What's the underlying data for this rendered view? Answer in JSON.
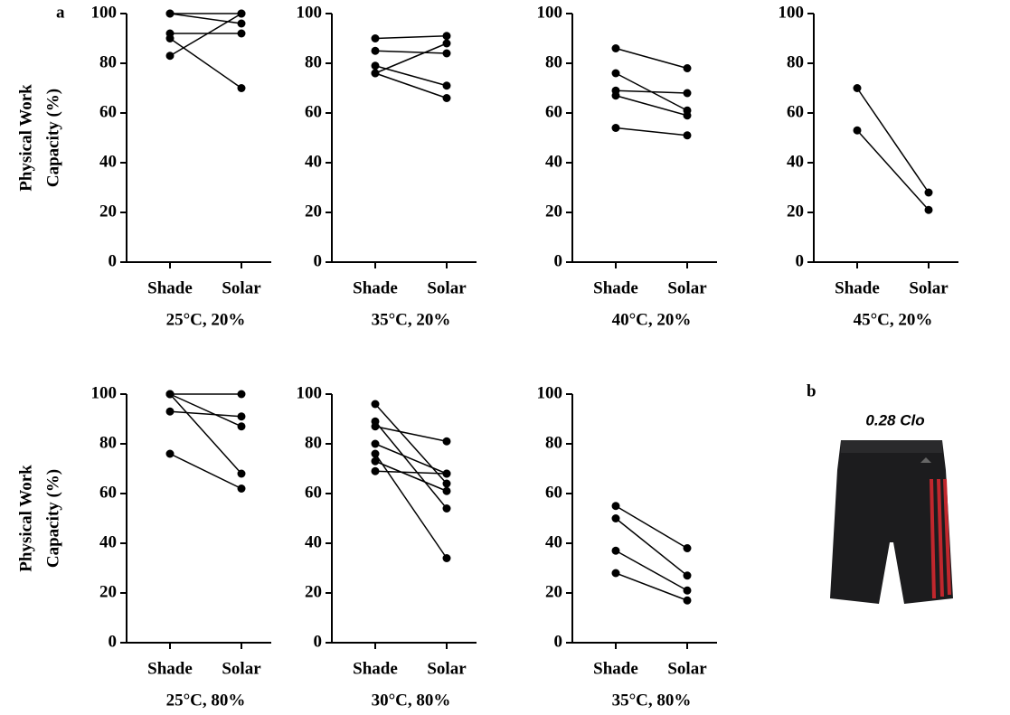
{
  "chart_data": [
    {
      "type": "line",
      "panel_label": "a",
      "ylabel": [
        "Physical Work",
        "Capacity (%)"
      ],
      "xlabel": "25°C, 20%",
      "categories": [
        "Shade",
        "Solar"
      ],
      "color": "#000000",
      "ylim": [
        0,
        100
      ],
      "yticks": [
        0,
        20,
        40,
        60,
        80,
        100
      ],
      "series": [
        {
          "values": [
            100,
            100
          ]
        },
        {
          "values": [
            100,
            96
          ]
        },
        {
          "values": [
            92,
            92
          ]
        },
        {
          "values": [
            90,
            70
          ]
        },
        {
          "values": [
            83,
            100
          ]
        }
      ]
    },
    {
      "type": "line",
      "xlabel": "35°C, 20%",
      "categories": [
        "Shade",
        "Solar"
      ],
      "color": "#000000",
      "ylim": [
        0,
        100
      ],
      "yticks": [
        0,
        20,
        40,
        60,
        80,
        100
      ],
      "series": [
        {
          "values": [
            90,
            91
          ]
        },
        {
          "values": [
            85,
            84
          ]
        },
        {
          "values": [
            79,
            71
          ]
        },
        {
          "values": [
            76,
            88
          ]
        },
        {
          "values": [
            76,
            66
          ]
        }
      ]
    },
    {
      "type": "line",
      "xlabel": "40°C, 20%",
      "categories": [
        "Shade",
        "Solar"
      ],
      "color": "#000000",
      "ylim": [
        0,
        100
      ],
      "yticks": [
        0,
        20,
        40,
        60,
        80,
        100
      ],
      "series": [
        {
          "values": [
            86,
            78
          ]
        },
        {
          "values": [
            76,
            61
          ]
        },
        {
          "values": [
            69,
            68
          ]
        },
        {
          "values": [
            67,
            59
          ]
        },
        {
          "values": [
            54,
            51
          ]
        }
      ]
    },
    {
      "type": "line",
      "xlabel": "45°C, 20%",
      "categories": [
        "Shade",
        "Solar"
      ],
      "color": "#000000",
      "ylim": [
        0,
        100
      ],
      "yticks": [
        0,
        20,
        40,
        60,
        80,
        100
      ],
      "series": [
        {
          "values": [
            70,
            28
          ]
        },
        {
          "values": [
            53,
            21
          ]
        }
      ]
    },
    {
      "type": "line",
      "ylabel": [
        "Physical Work",
        "Capacity (%)"
      ],
      "xlabel": "25°C, 80%",
      "categories": [
        "Shade",
        "Solar"
      ],
      "color": "#000000",
      "ylim": [
        0,
        100
      ],
      "yticks": [
        0,
        20,
        40,
        60,
        80,
        100
      ],
      "series": [
        {
          "values": [
            100,
            100
          ]
        },
        {
          "values": [
            100,
            87
          ]
        },
        {
          "values": [
            100,
            68
          ]
        },
        {
          "values": [
            93,
            91
          ]
        },
        {
          "values": [
            76,
            62
          ]
        }
      ]
    },
    {
      "type": "line",
      "xlabel": "30°C, 80%",
      "categories": [
        "Shade",
        "Solar"
      ],
      "color": "#000000",
      "ylim": [
        0,
        100
      ],
      "yticks": [
        0,
        20,
        40,
        60,
        80,
        100
      ],
      "series": [
        {
          "values": [
            96,
            64
          ]
        },
        {
          "values": [
            89,
            54
          ]
        },
        {
          "values": [
            87,
            81
          ]
        },
        {
          "values": [
            80,
            68
          ]
        },
        {
          "values": [
            76,
            34
          ]
        },
        {
          "values": [
            73,
            61
          ]
        },
        {
          "values": [
            69,
            68
          ]
        }
      ]
    },
    {
      "type": "line",
      "xlabel": "35°C, 80%",
      "categories": [
        "Shade",
        "Solar"
      ],
      "color": "#000000",
      "ylim": [
        0,
        100
      ],
      "yticks": [
        0,
        20,
        40,
        60,
        80,
        100
      ],
      "series": [
        {
          "values": [
            55,
            38
          ]
        },
        {
          "values": [
            50,
            27
          ]
        },
        {
          "values": [
            37,
            21
          ]
        },
        {
          "values": [
            28,
            17
          ]
        }
      ]
    }
  ],
  "image_panel": {
    "label": "b",
    "caption": "0.28 Clo"
  }
}
